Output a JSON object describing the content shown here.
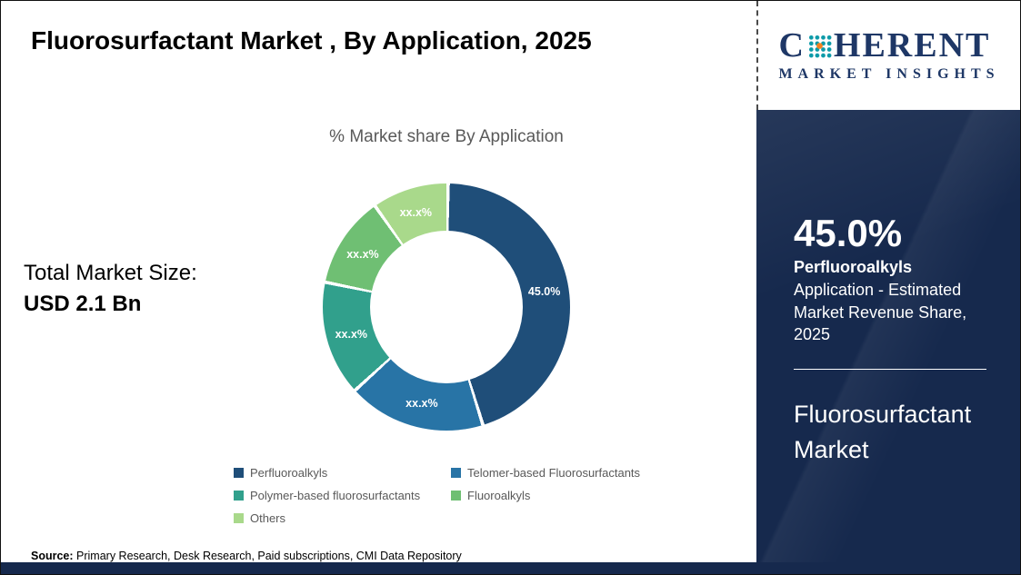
{
  "title": "Fluorosurfactant Market , By Application, 2025",
  "logo": {
    "brand_first": "C",
    "brand_rest": "HERENT",
    "tagline": "MARKET INSIGHTS"
  },
  "total_market": {
    "label": "Total Market Size:",
    "value": "USD 2.1 Bn"
  },
  "chart_data": {
    "type": "pie",
    "subtype": "donut",
    "title": "% Market share By Application",
    "categories": [
      "Perfluoroalkyls",
      "Telomer-based Fluorosurfactants",
      "Polymer-based fluorosurfactants",
      "Fluoroalkyls",
      "Others"
    ],
    "values": [
      45,
      18,
      15,
      12,
      10
    ],
    "slice_labels": [
      "45.0%",
      "xx.x%",
      "xx.x%",
      "xx.x%",
      "xx.x%"
    ],
    "colors": [
      "#1f4e79",
      "#2874a6",
      "#31a08c",
      "#6fbf73",
      "#a9d98b"
    ],
    "legend_position": "bottom"
  },
  "side_panel": {
    "stat_value": "45.0%",
    "stat_name": "Perfluoroalkyls",
    "stat_desc": "Application - Estimated Market Revenue Share, 2025",
    "market_name": "Fluorosurfactant Market",
    "bg_color": "#16294d"
  },
  "source": {
    "label": "Source:",
    "text": " Primary Research, Desk Research, Paid subscriptions, CMI Data Repository"
  }
}
